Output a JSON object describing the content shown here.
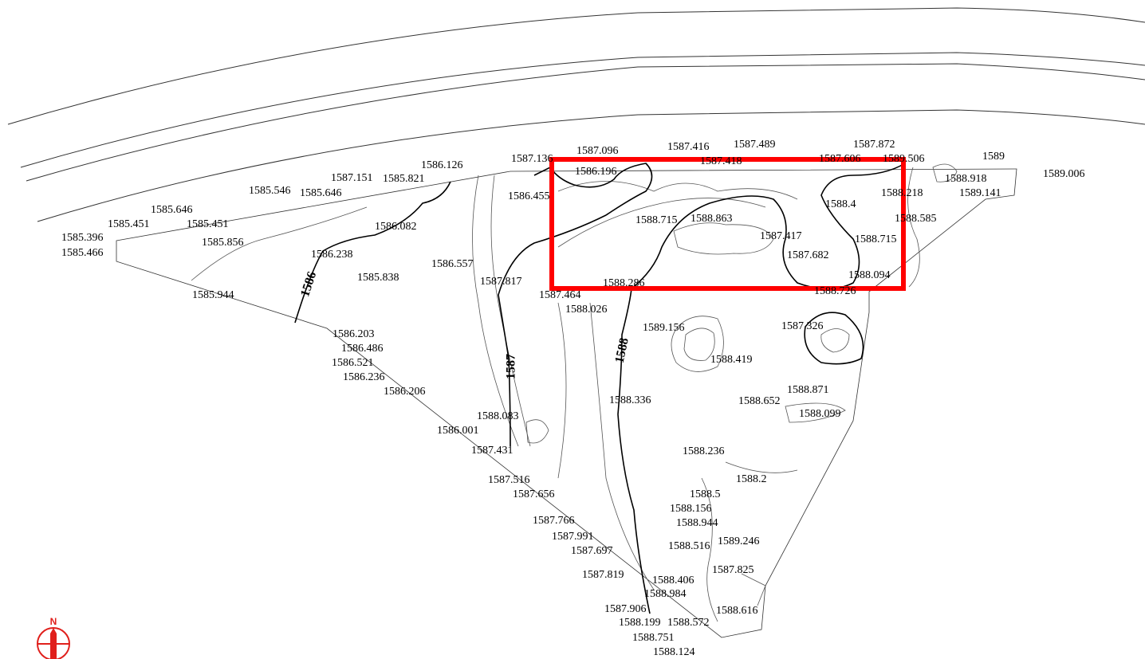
{
  "north": "N",
  "contour_labels": [
    "1586",
    "1587",
    "1588"
  ],
  "spot_elevations": [
    "1587.136",
    "1587.096",
    "1587.416",
    "1587.489",
    "1587.872",
    "1587.418",
    "1587.606",
    "1589.506",
    "1589",
    "1589.006",
    "1588.918",
    "1589.141",
    "1586.196",
    "1586.126",
    "1587.151",
    "1585.821",
    "1585.546",
    "1585.646",
    "1586.455",
    "1588.218",
    "1585.646",
    "1585.451",
    "1585.451",
    "1588.4",
    "1588.715",
    "1588.863",
    "1588.585",
    "1586.082",
    "1587.417",
    "1585.396",
    "1585.856",
    "1588.715",
    "1585.466",
    "1586.238",
    "1587.682",
    "1586.557",
    "1585.838",
    "1588.094",
    "1587.817",
    "1588.286",
    "1588.726",
    "1587.464",
    "1585.944",
    "1588.026",
    "1589.156",
    "1587.326",
    "1586.203",
    "1586.486",
    "1588.419",
    "1586.521",
    "1586.236",
    "1588.871",
    "1586.206",
    "1588.336",
    "1588.652",
    "1588.099",
    "1588.083",
    "1586.001",
    "1588.236",
    "1587.431",
    "1588.2",
    "1587.516",
    "1588.5",
    "1587.656",
    "1588.156",
    "1588.944",
    "1587.766",
    "1587.991",
    "1589.246",
    "1588.516",
    "1587.697",
    "1587.825",
    "1587.819",
    "1588.406",
    "1588.984",
    "1587.906",
    "1588.616",
    "1588.199",
    "1588.572",
    "1588.751",
    "1588.124"
  ]
}
